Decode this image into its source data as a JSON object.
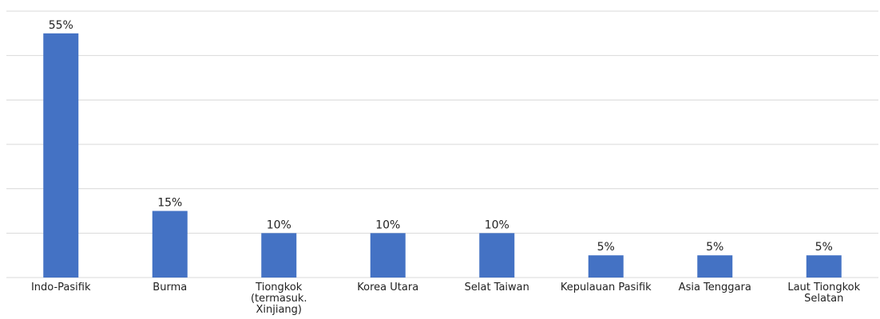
{
  "chart_data": {
    "type": "bar",
    "categories": [
      "Indo-Pasifik",
      "Burma",
      "Tiongkok (termasuk. Xinjiang)",
      "Korea Utara",
      "Selat Taiwan",
      "Kepulauan Pasifik",
      "Asia Tenggara",
      "Laut Tiongkok Selatan"
    ],
    "values": [
      55,
      15,
      10,
      10,
      10,
      5,
      5,
      5
    ],
    "value_labels": [
      "55%",
      "15%",
      "10%",
      "10%",
      "10%",
      "5%",
      "5%",
      "5%"
    ],
    "color": "#4472c4",
    "ylim": [
      0,
      60
    ],
    "yticks": [
      0,
      10,
      20,
      30,
      40,
      50,
      60
    ],
    "grid": true
  }
}
